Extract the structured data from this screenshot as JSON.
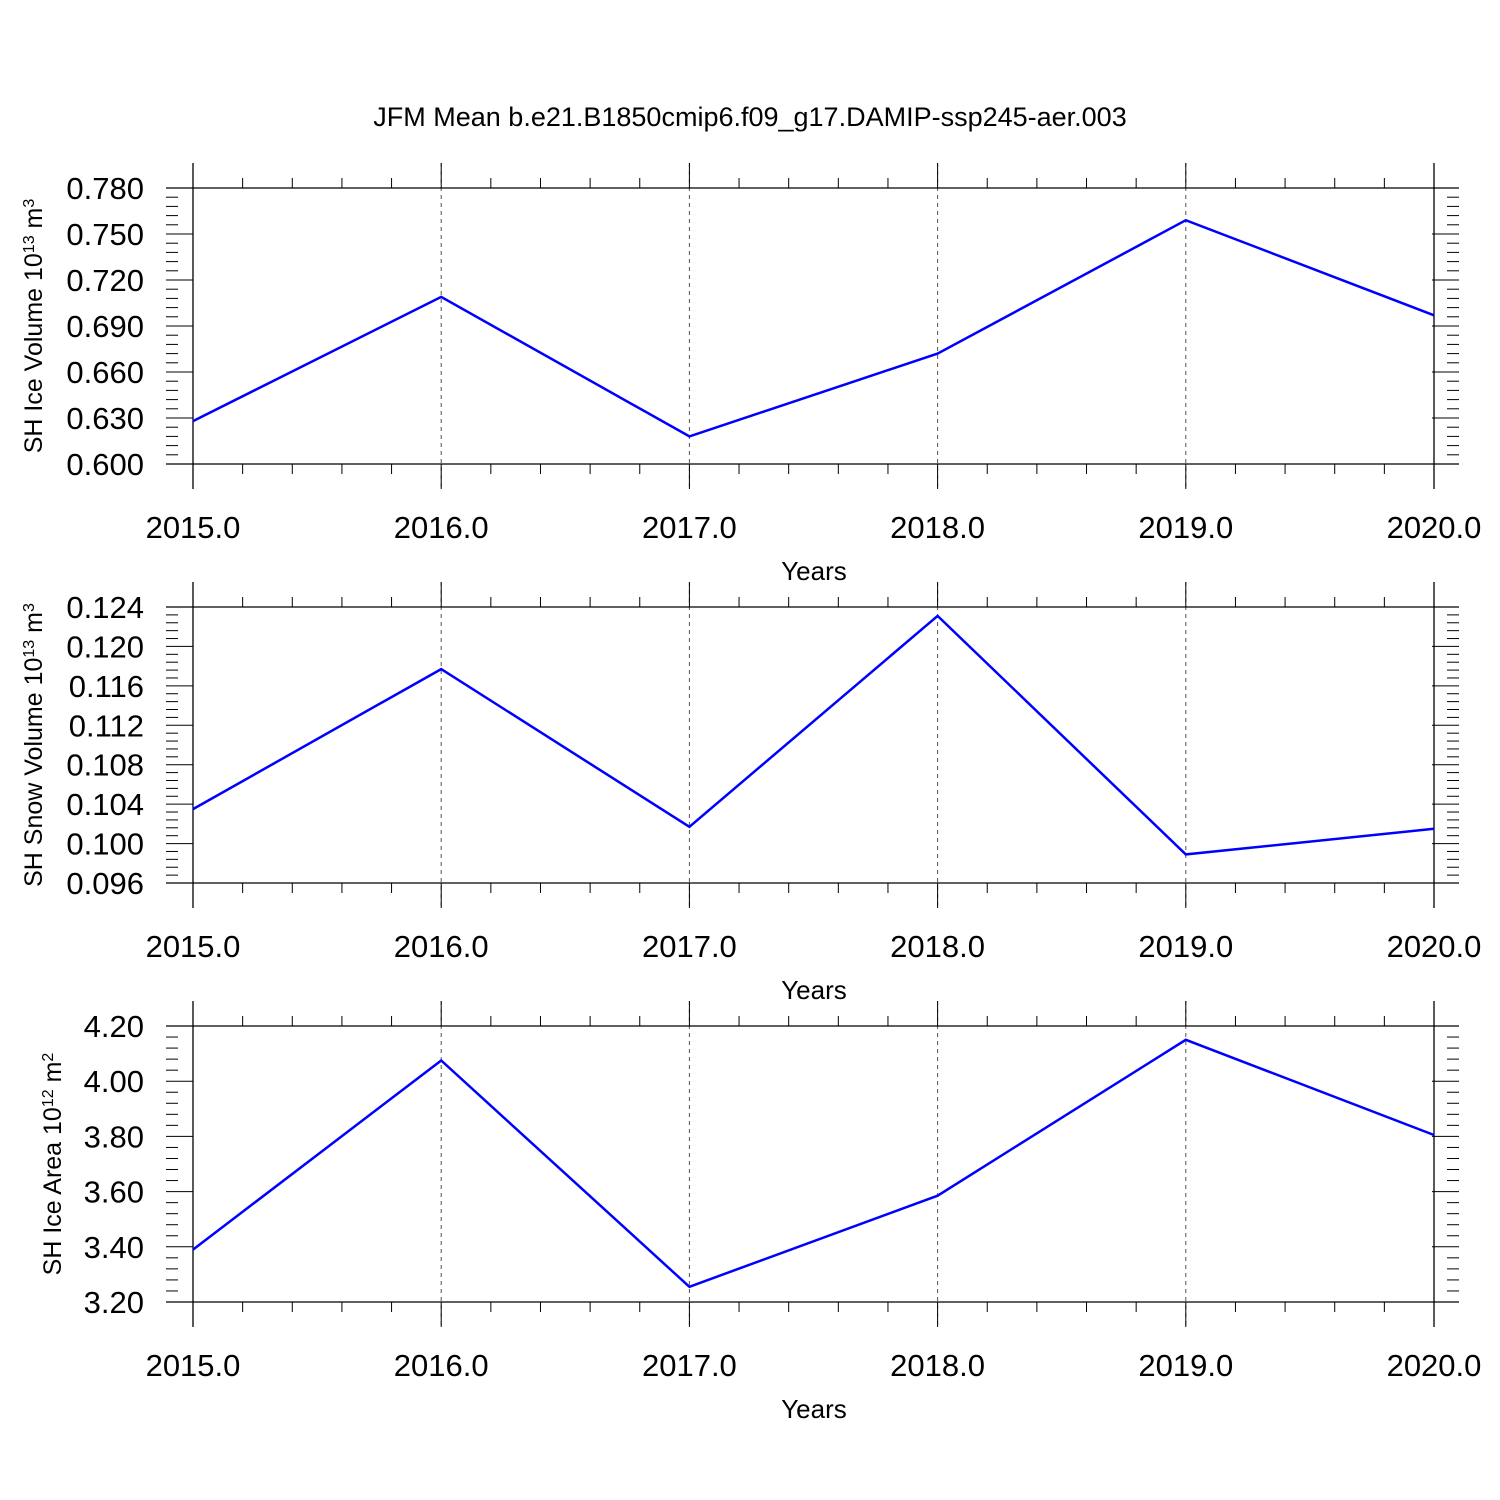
{
  "figure": {
    "title": "JFM Mean b.e21.B1850cmip6.f09_g17.DAMIP-ssp245-aer.003",
    "line_color": "#0000ff",
    "grid_color": "#555555"
  },
  "chart_data": [
    {
      "type": "line",
      "xlabel": "Years",
      "ylabel": {
        "text": "SH Ice Volume 10",
        "sup1": "13",
        "unit": " m",
        "sup2": "3"
      },
      "x": [
        2015,
        2016,
        2017,
        2018,
        2019,
        2020
      ],
      "xticks": [
        "2015.0",
        "2016.0",
        "2017.0",
        "2018.0",
        "2019.0",
        "2020.0"
      ],
      "yticks": [
        "0.600",
        "0.630",
        "0.660",
        "0.690",
        "0.720",
        "0.750",
        "0.780"
      ],
      "ylim": [
        0.6,
        0.78
      ],
      "y_minor_step": 0.006,
      "series": [
        {
          "values": [
            0.628,
            0.709,
            0.618,
            0.672,
            0.759,
            0.697
          ]
        }
      ],
      "vertical_grid": true
    },
    {
      "type": "line",
      "xlabel": "Years",
      "ylabel": {
        "text": "SH Snow Volume 10",
        "sup1": "13",
        "unit": " m",
        "sup2": "3"
      },
      "x": [
        2015,
        2016,
        2017,
        2018,
        2019,
        2020
      ],
      "xticks": [
        "2015.0",
        "2016.0",
        "2017.0",
        "2018.0",
        "2019.0",
        "2020.0"
      ],
      "yticks": [
        "0.096",
        "0.100",
        "0.104",
        "0.108",
        "0.112",
        "0.116",
        "0.120",
        "0.124"
      ],
      "ylim": [
        0.096,
        0.124
      ],
      "y_minor_step": 0.0008,
      "series": [
        {
          "values": [
            0.1035,
            0.1177,
            0.1017,
            0.1231,
            0.0989,
            0.1015
          ]
        }
      ],
      "vertical_grid": true
    },
    {
      "type": "line",
      "xlabel": "Years",
      "ylabel": {
        "text": "SH Ice Area 10",
        "sup1": "12",
        "unit": " m",
        "sup2": "2"
      },
      "x": [
        2015,
        2016,
        2017,
        2018,
        2019,
        2020
      ],
      "xticks": [
        "2015.0",
        "2016.0",
        "2017.0",
        "2018.0",
        "2019.0",
        "2020.0"
      ],
      "yticks": [
        "3.20",
        "3.40",
        "3.60",
        "3.80",
        "4.00",
        "4.20"
      ],
      "ylim": [
        3.2,
        4.2
      ],
      "y_minor_step": 0.04,
      "series": [
        {
          "values": [
            3.39,
            4.075,
            3.255,
            3.585,
            4.15,
            3.805
          ]
        }
      ],
      "vertical_grid": true
    }
  ]
}
